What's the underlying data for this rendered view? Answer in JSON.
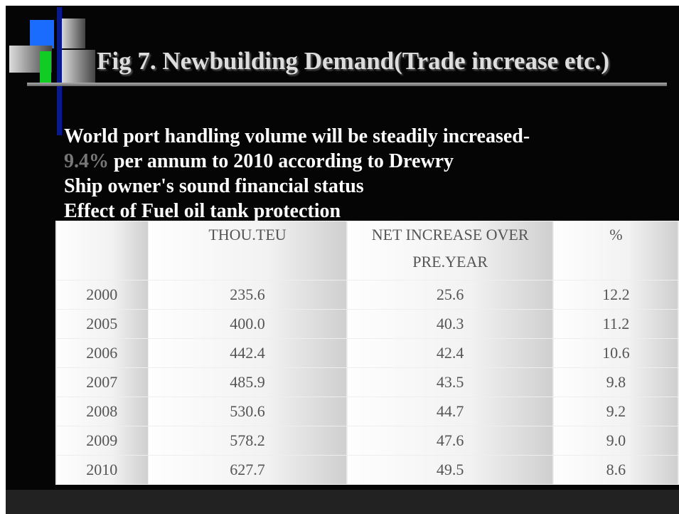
{
  "title": "Fig 7. Newbuilding Demand(Trade increase etc.)",
  "bullets": [
    [
      "World port handling volume will be steadily increased-",
      "9.4%",
      " per annum to 2010 according to Drewry"
    ],
    [
      "Ship owner's sound financial status"
    ],
    [
      "Effect of Fuel oil tank protection"
    ]
  ],
  "table": {
    "headers": [
      "THOU.TEU",
      "NET INCREASE OVER PRE.YEAR",
      "%"
    ],
    "rows": [
      [
        "2000",
        "235.6",
        "25.6",
        "12.2"
      ],
      [
        "2005",
        "400.0",
        "40.3",
        "11.2"
      ],
      [
        "2006",
        "442.4",
        "42.4",
        "10.6"
      ],
      [
        "2007",
        "485.9",
        "43.5",
        "9.8"
      ],
      [
        "2008",
        "530.6",
        "44.7",
        "9.2"
      ],
      [
        "2009",
        "578.2",
        "47.6",
        "9.0"
      ],
      [
        "2010",
        "627.7",
        "49.5",
        "8.6"
      ]
    ]
  }
}
